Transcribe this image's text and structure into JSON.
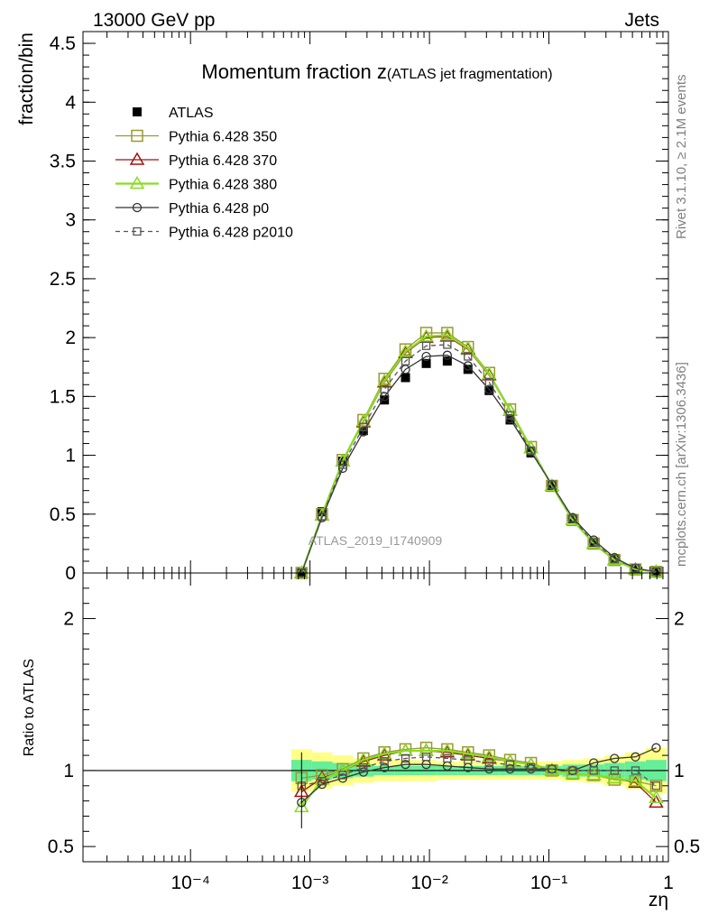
{
  "header": {
    "left": "13000 GeV pp",
    "right": "Jets"
  },
  "side_labels": {
    "rivet": "Rivet 3.1.10, ≥ 2.1M events",
    "mcplots": "mcplots.cern.ch [arXiv:1306.3436]"
  },
  "watermark": "ATLAS_2019_I1740909",
  "chart_data": [
    {
      "type": "line",
      "panel": "main",
      "title_main": "Momentum fraction ",
      "title_var": "z",
      "title_paren": "(ATLAS jet fragmentation)",
      "xlabel": "zη",
      "ylabel": "fraction/bin",
      "xscale": "log",
      "xlim": [
        0.0001,
        1
      ],
      "ylim": [
        0,
        4.6
      ],
      "x_tick_labels": [
        "10⁻⁴",
        "10⁻³",
        "10⁻²",
        "10⁻¹",
        "1"
      ],
      "y_ticks": [
        0,
        0.5,
        1,
        1.5,
        2,
        2.5,
        3,
        3.5,
        4,
        4.5
      ],
      "y_tick_labels": [
        "0",
        "0.5",
        "1",
        "1.5",
        "2",
        "2.5",
        "3",
        "3.5",
        "4",
        "4.5"
      ],
      "legend_position": "top-left",
      "x": [
        0.00085,
        0.00126,
        0.00188,
        0.0028,
        0.0042,
        0.0063,
        0.0094,
        0.0141,
        0.021,
        0.0316,
        0.0473,
        0.0707,
        0.106,
        0.158,
        0.237,
        0.354,
        0.53,
        0.79
      ],
      "series": [
        {
          "name": "ATLAS",
          "color": "#000000",
          "marker": "filled-square",
          "line": "none",
          "values": [
            0.0,
            0.52,
            0.95,
            1.21,
            1.47,
            1.66,
            1.78,
            1.8,
            1.73,
            1.55,
            1.3,
            1.02,
            0.74,
            0.46,
            0.26,
            0.12,
            0.04,
            0.01
          ]
        },
        {
          "name": "Pythia 6.428 350",
          "color": "#999933",
          "marker": "open-square",
          "line": "solid",
          "values": [
            0.0,
            0.5,
            0.96,
            1.3,
            1.65,
            1.9,
            2.04,
            2.04,
            1.92,
            1.7,
            1.39,
            1.07,
            0.74,
            0.45,
            0.25,
            0.11,
            0.03,
            0.01
          ]
        },
        {
          "name": "Pythia 6.428 370",
          "color": "#a01010",
          "marker": "open-triangle",
          "line": "solid",
          "values": [
            0.0,
            0.49,
            0.95,
            1.28,
            1.62,
            1.87,
            2.0,
            2.01,
            1.9,
            1.68,
            1.38,
            1.06,
            0.74,
            0.45,
            0.25,
            0.11,
            0.03,
            0.01
          ]
        },
        {
          "name": "Pythia 6.428 380",
          "color": "#88dd22",
          "marker": "open-triangle",
          "line": "solid",
          "values": [
            0.0,
            0.49,
            0.95,
            1.29,
            1.63,
            1.88,
            2.01,
            2.02,
            1.91,
            1.69,
            1.38,
            1.06,
            0.74,
            0.45,
            0.25,
            0.11,
            0.03,
            0.01
          ]
        },
        {
          "name": "Pythia 6.428 p0",
          "color": "#333333",
          "marker": "open-circle",
          "line": "solid",
          "values": [
            0.0,
            0.47,
            0.89,
            1.2,
            1.5,
            1.73,
            1.84,
            1.85,
            1.76,
            1.56,
            1.31,
            1.03,
            0.75,
            0.47,
            0.28,
            0.13,
            0.04,
            0.01
          ]
        },
        {
          "name": "Pythia 6.428 p2010",
          "color": "#555555",
          "marker": "open-square-small",
          "line": "dashed",
          "values": [
            0.0,
            0.48,
            0.92,
            1.24,
            1.56,
            1.8,
            1.93,
            1.94,
            1.84,
            1.62,
            1.34,
            1.04,
            0.75,
            0.46,
            0.26,
            0.12,
            0.04,
            0.01
          ]
        }
      ]
    },
    {
      "type": "line",
      "panel": "ratio",
      "ylabel": "Ratio to ATLAS",
      "xscale": "log",
      "xlim": [
        0.0001,
        1
      ],
      "ylim": [
        0.4,
        2.3
      ],
      "y_ticks": [
        0.5,
        1,
        2
      ],
      "y_tick_labels": [
        "0.5",
        "1",
        "2"
      ],
      "reference_band": {
        "inner_color": "#66ee99",
        "outer_color": "#ffff88",
        "inner_halfwidth": [
          0.07,
          0.06,
          0.05,
          0.04,
          0.03,
          0.03,
          0.03,
          0.03,
          0.03,
          0.03,
          0.03,
          0.03,
          0.03,
          0.04,
          0.04,
          0.05,
          0.06,
          0.07
        ],
        "outer_halfwidth": [
          0.14,
          0.12,
          0.1,
          0.08,
          0.07,
          0.07,
          0.07,
          0.06,
          0.06,
          0.06,
          0.06,
          0.06,
          0.06,
          0.07,
          0.08,
          0.1,
          0.12,
          0.15
        ]
      },
      "x": [
        0.00085,
        0.00126,
        0.00188,
        0.0028,
        0.0042,
        0.0063,
        0.0094,
        0.0141,
        0.021,
        0.0316,
        0.0473,
        0.0707,
        0.106,
        0.158,
        0.237,
        0.354,
        0.53,
        0.79
      ],
      "series": [
        {
          "name": "Pythia 6.428 350",
          "color": "#999933",
          "marker": "open-square",
          "line": "solid",
          "values": [
            0.95,
            0.97,
            1.01,
            1.08,
            1.12,
            1.14,
            1.15,
            1.14,
            1.12,
            1.1,
            1.07,
            1.05,
            1.0,
            0.98,
            0.97,
            0.94,
            0.93,
            0.9
          ]
        },
        {
          "name": "Pythia 6.428 370",
          "color": "#a01010",
          "marker": "open-triangle",
          "line": "solid",
          "values": [
            0.86,
            0.95,
            1.0,
            1.06,
            1.1,
            1.13,
            1.13,
            1.12,
            1.1,
            1.08,
            1.06,
            1.04,
            1.0,
            0.98,
            0.97,
            0.95,
            0.92,
            0.79
          ]
        },
        {
          "name": "Pythia 6.428 380",
          "color": "#88dd22",
          "marker": "open-triangle",
          "line": "solid",
          "values": [
            0.76,
            0.94,
            1.0,
            1.07,
            1.11,
            1.13,
            1.13,
            1.13,
            1.11,
            1.09,
            1.06,
            1.04,
            1.0,
            0.98,
            0.97,
            0.95,
            0.93,
            0.82
          ]
        },
        {
          "name": "Pythia 6.428 p0",
          "color": "#333333",
          "marker": "open-circle",
          "line": "solid",
          "values": [
            0.79,
            0.91,
            0.95,
            0.99,
            1.02,
            1.04,
            1.04,
            1.03,
            1.02,
            1.01,
            1.01,
            1.01,
            1.01,
            1.0,
            1.05,
            1.08,
            1.09,
            1.15
          ]
        },
        {
          "name": "Pythia 6.428 p2010",
          "color": "#555555",
          "marker": "open-square-small",
          "line": "dashed",
          "values": [
            0.9,
            0.93,
            0.97,
            1.02,
            1.06,
            1.08,
            1.09,
            1.08,
            1.07,
            1.05,
            1.04,
            1.02,
            1.01,
            1.0,
            1.0,
            1.0,
            1.0,
            0.9
          ]
        }
      ]
    }
  ]
}
